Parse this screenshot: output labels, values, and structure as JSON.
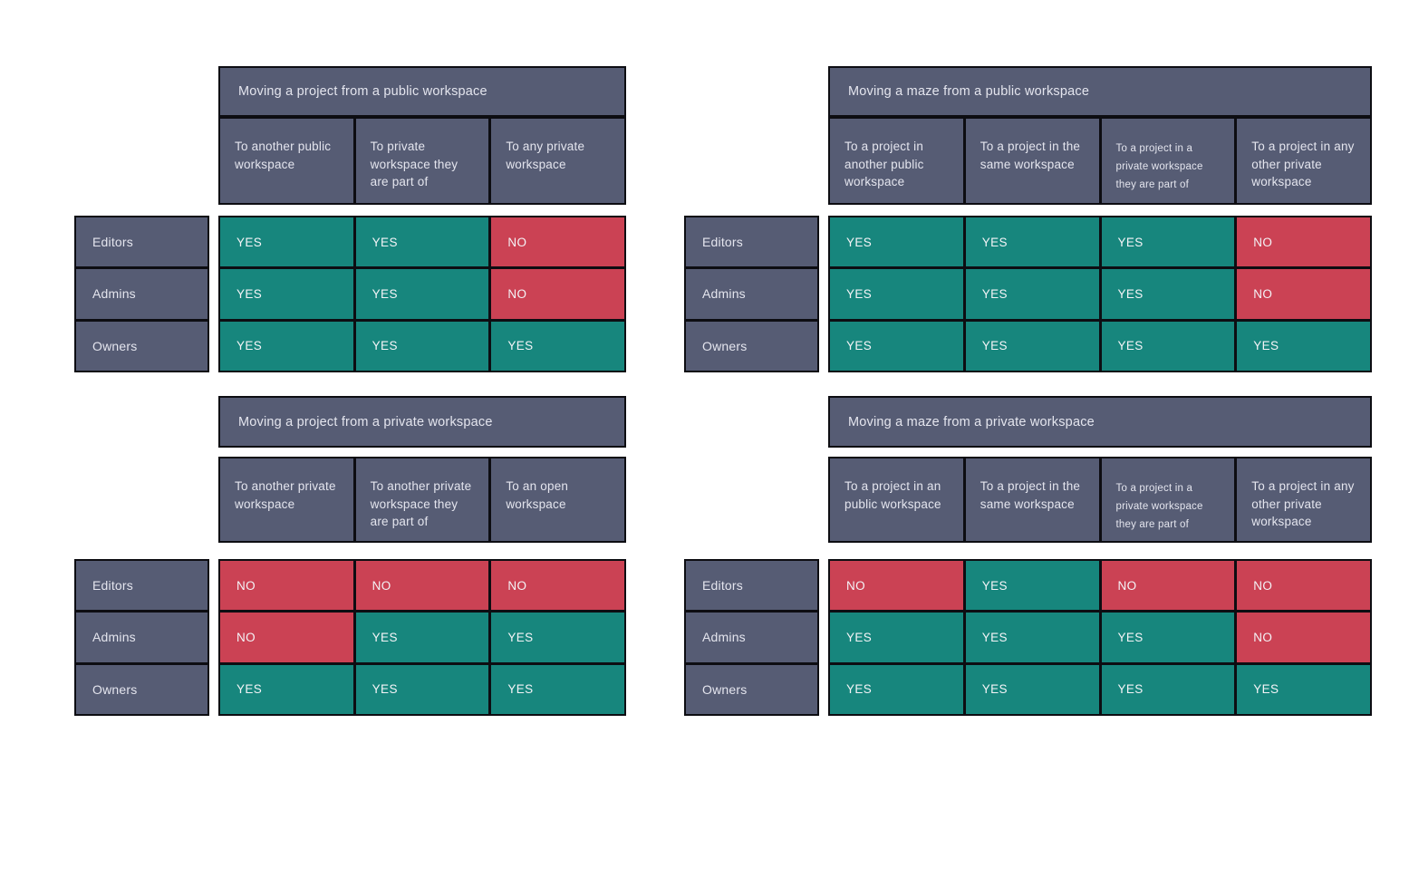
{
  "colors": {
    "header_bg": "#565c74",
    "header_text": "#e4e5ee",
    "yes_bg": "#17867d",
    "no_bg": "#cb4254",
    "value_text": "#f4f4f7",
    "border": "#0d0d12",
    "page_bg": "#ffffff"
  },
  "legend": {
    "yes_label": "YES",
    "no_label": "NO"
  },
  "row_header": [
    "Editors",
    "Admins",
    "Owners"
  ],
  "chart_data": [
    {
      "type": "table",
      "key": "moving-project-from-public-workspace",
      "title": "Moving a project from a public workspace",
      "columns": [
        {
          "label": "To another public workspace",
          "small": false
        },
        {
          "label": "To private workspace they are part of",
          "small": false
        },
        {
          "label": "To any private workspace",
          "small": false
        }
      ],
      "rows": [
        {
          "label": "Editors",
          "values": [
            "YES",
            "YES",
            "NO"
          ]
        },
        {
          "label": "Admins",
          "values": [
            "YES",
            "YES",
            "NO"
          ]
        },
        {
          "label": "Owners",
          "values": [
            "YES",
            "YES",
            "YES"
          ]
        }
      ]
    },
    {
      "type": "table",
      "key": "moving-maze-from-public-workspace",
      "title": "Moving a maze from a public workspace",
      "columns": [
        {
          "label": "To a project in another public workspace",
          "small": false
        },
        {
          "label": "To a project in the same workspace",
          "small": false
        },
        {
          "label": "To a project in a private workspace they are part of",
          "small": true
        },
        {
          "label": "To a project in any other private workspace",
          "small": false
        }
      ],
      "rows": [
        {
          "label": "Editors",
          "values": [
            "YES",
            "YES",
            "YES",
            "NO"
          ]
        },
        {
          "label": "Admins",
          "values": [
            "YES",
            "YES",
            "YES",
            "NO"
          ]
        },
        {
          "label": "Owners",
          "values": [
            "YES",
            "YES",
            "YES",
            "YES"
          ]
        }
      ]
    },
    {
      "type": "table",
      "key": "moving-project-from-private-workspace",
      "title": "Moving a project from a private workspace",
      "columns": [
        {
          "label": "To another private workspace",
          "small": false
        },
        {
          "label": "To another private workspace they are part of",
          "small": false
        },
        {
          "label": "To an open workspace",
          "small": false
        }
      ],
      "rows": [
        {
          "label": "Editors",
          "values": [
            "NO",
            "NO",
            "NO"
          ]
        },
        {
          "label": "Admins",
          "values": [
            "NO",
            "YES",
            "YES"
          ]
        },
        {
          "label": "Owners",
          "values": [
            "YES",
            "YES",
            "YES"
          ]
        }
      ]
    },
    {
      "type": "table",
      "key": "moving-maze-from-private-workspace",
      "title": "Moving a maze from a private workspace",
      "columns": [
        {
          "label": "To a project in an public workspace",
          "small": false
        },
        {
          "label": "To a project in the same workspace",
          "small": false
        },
        {
          "label": "To a project in a private workspace they are part of",
          "small": true
        },
        {
          "label": "To a project in any other private workspace",
          "small": false
        }
      ],
      "rows": [
        {
          "label": "Editors",
          "values": [
            "NO",
            "YES",
            "NO",
            "NO"
          ]
        },
        {
          "label": "Admins",
          "values": [
            "YES",
            "YES",
            "YES",
            "NO"
          ]
        },
        {
          "label": "Owners",
          "values": [
            "YES",
            "YES",
            "YES",
            "YES"
          ]
        }
      ]
    }
  ]
}
